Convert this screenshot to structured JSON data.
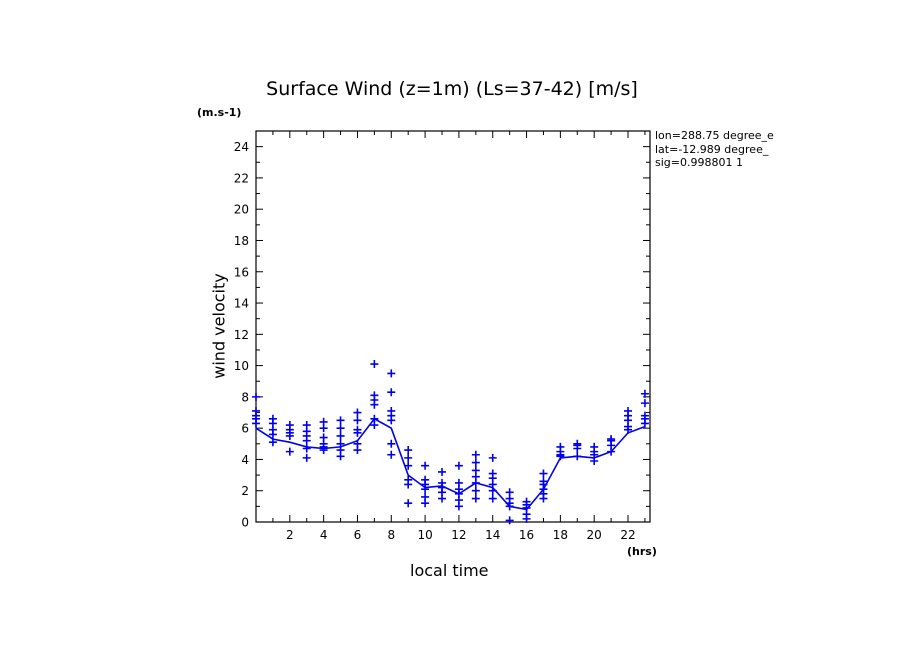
{
  "chart_data": {
    "type": "scatter",
    "title": "Surface Wind (z=1m) (Ls=37-42) [m/s]",
    "xlabel": "local time",
    "ylabel": "wind velocity",
    "y_unit_label": "(m.s-1)",
    "x_unit_label": "(hrs)",
    "xlim": [
      0,
      23.3
    ],
    "ylim": [
      0,
      25
    ],
    "xticks": [
      2,
      4,
      6,
      8,
      10,
      12,
      14,
      16,
      18,
      20,
      22
    ],
    "yticks": [
      0,
      2,
      4,
      6,
      8,
      10,
      12,
      14,
      16,
      18,
      20,
      22,
      24
    ],
    "grid": false,
    "info_lines": [
      "lon=288.75 degree_e",
      "lat=-12.989 degree_",
      "sig=0.998801 1"
    ],
    "color": "#0000ee",
    "series": [
      {
        "kind": "line",
        "x": [
          0,
          1,
          2,
          3,
          4,
          5,
          6,
          7,
          8,
          9,
          10,
          11,
          12,
          13,
          14,
          15,
          16,
          17,
          18,
          19,
          20,
          21,
          22,
          23
        ],
        "y": [
          6.0,
          5.3,
          5.1,
          4.8,
          4.7,
          4.8,
          5.2,
          6.6,
          6.0,
          3.0,
          2.2,
          2.3,
          1.8,
          2.5,
          2.2,
          1.0,
          0.8,
          2.1,
          4.1,
          4.2,
          4.1,
          4.5,
          5.7,
          6.1
        ]
      },
      {
        "kind": "scatter",
        "marker": "+",
        "points": [
          [
            0,
            8.0
          ],
          [
            0,
            7.1
          ],
          [
            0,
            6.8
          ],
          [
            0,
            6.6
          ],
          [
            0,
            6.3
          ],
          [
            1,
            6.6
          ],
          [
            1,
            6.3
          ],
          [
            1,
            5.9
          ],
          [
            1,
            5.6
          ],
          [
            1,
            5.1
          ],
          [
            2,
            6.2
          ],
          [
            2,
            5.9
          ],
          [
            2,
            5.7
          ],
          [
            2,
            5.5
          ],
          [
            2,
            4.5
          ],
          [
            3,
            6.2
          ],
          [
            3,
            5.8
          ],
          [
            3,
            5.5
          ],
          [
            3,
            5.2
          ],
          [
            3,
            4.7
          ],
          [
            3,
            4.1
          ],
          [
            4,
            6.4
          ],
          [
            4,
            6.0
          ],
          [
            4,
            5.4
          ],
          [
            4,
            5.0
          ],
          [
            4,
            4.8
          ],
          [
            4,
            4.6
          ],
          [
            5,
            6.5
          ],
          [
            5,
            6.0
          ],
          [
            5,
            5.5
          ],
          [
            5,
            5.0
          ],
          [
            5,
            4.6
          ],
          [
            5,
            4.2
          ],
          [
            6,
            7.0
          ],
          [
            6,
            6.5
          ],
          [
            6,
            5.9
          ],
          [
            6,
            5.7
          ],
          [
            6,
            5.0
          ],
          [
            6,
            4.6
          ],
          [
            7,
            10.1
          ],
          [
            7,
            8.1
          ],
          [
            7,
            7.8
          ],
          [
            7,
            7.5
          ],
          [
            7,
            6.6
          ],
          [
            7,
            6.2
          ],
          [
            8,
            9.5
          ],
          [
            8,
            8.3
          ],
          [
            8,
            7.1
          ],
          [
            8,
            6.8
          ],
          [
            8,
            6.5
          ],
          [
            8,
            5.0
          ],
          [
            8,
            4.3
          ],
          [
            9,
            4.6
          ],
          [
            9,
            4.1
          ],
          [
            9,
            3.6
          ],
          [
            9,
            2.7
          ],
          [
            9,
            2.4
          ],
          [
            9,
            1.2
          ],
          [
            10,
            3.6
          ],
          [
            10,
            2.7
          ],
          [
            10,
            2.4
          ],
          [
            10,
            2.1
          ],
          [
            10,
            1.6
          ],
          [
            10,
            1.2
          ],
          [
            11,
            3.2
          ],
          [
            11,
            2.5
          ],
          [
            11,
            2.2
          ],
          [
            11,
            1.9
          ],
          [
            11,
            1.5
          ],
          [
            12,
            3.6
          ],
          [
            12,
            2.5
          ],
          [
            12,
            2.1
          ],
          [
            12,
            1.8
          ],
          [
            12,
            1.4
          ],
          [
            12,
            1.0
          ],
          [
            13,
            4.3
          ],
          [
            13,
            3.8
          ],
          [
            13,
            3.3
          ],
          [
            13,
            2.9
          ],
          [
            13,
            2.5
          ],
          [
            13,
            2.0
          ],
          [
            13,
            1.5
          ],
          [
            14,
            4.1
          ],
          [
            14,
            3.1
          ],
          [
            14,
            2.8
          ],
          [
            14,
            2.4
          ],
          [
            14,
            2.0
          ],
          [
            14,
            1.5
          ],
          [
            15,
            1.9
          ],
          [
            15,
            1.5
          ],
          [
            15,
            1.2
          ],
          [
            15,
            1.0
          ],
          [
            15,
            0.1
          ],
          [
            16,
            1.3
          ],
          [
            16,
            1.1
          ],
          [
            16,
            0.9
          ],
          [
            16,
            0.5
          ],
          [
            16,
            0.2
          ],
          [
            17,
            3.1
          ],
          [
            17,
            2.6
          ],
          [
            17,
            2.4
          ],
          [
            17,
            2.1
          ],
          [
            17,
            1.8
          ],
          [
            17,
            1.5
          ],
          [
            18,
            4.8
          ],
          [
            18,
            4.5
          ],
          [
            18,
            4.3
          ],
          [
            18,
            4.2
          ],
          [
            19,
            5.0
          ],
          [
            19,
            4.9
          ],
          [
            19,
            4.7
          ],
          [
            19,
            4.2
          ],
          [
            20,
            4.8
          ],
          [
            20,
            4.5
          ],
          [
            20,
            4.3
          ],
          [
            20,
            3.9
          ],
          [
            21,
            5.3
          ],
          [
            21,
            5.2
          ],
          [
            21,
            4.9
          ],
          [
            21,
            4.5
          ],
          [
            22,
            7.1
          ],
          [
            22,
            6.8
          ],
          [
            22,
            6.5
          ],
          [
            22,
            6.1
          ],
          [
            22,
            5.9
          ],
          [
            23,
            8.2
          ],
          [
            23,
            7.6
          ],
          [
            23,
            6.8
          ],
          [
            23,
            6.6
          ],
          [
            23,
            6.3
          ]
        ]
      }
    ]
  }
}
